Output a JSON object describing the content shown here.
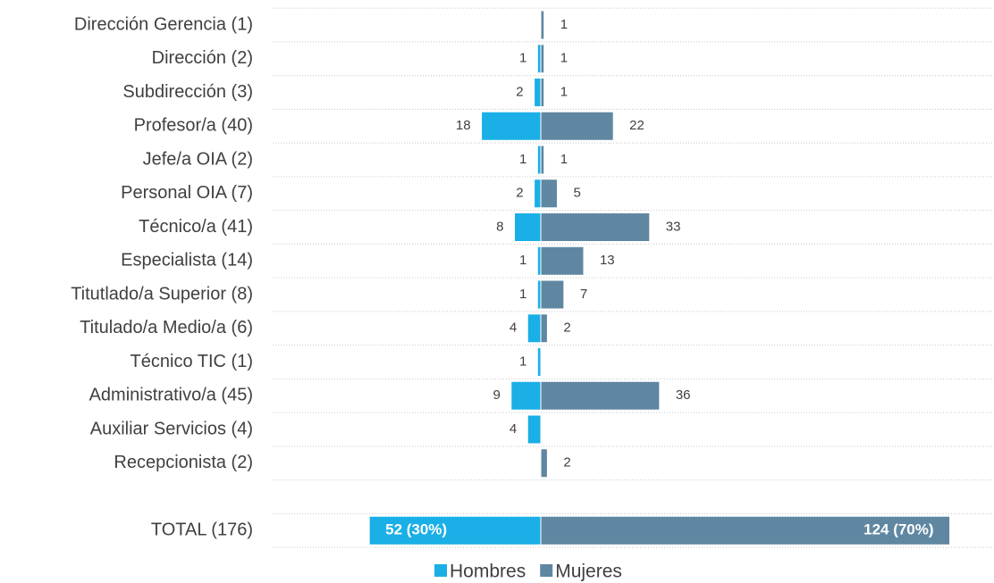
{
  "chart_data": {
    "type": "butterfly-bar",
    "categories": [
      "Dirección Gerencia (1)",
      "Dirección (2)",
      "Subdirección (3)",
      "Profesor/a (40)",
      "Jefe/a OIA (2)",
      "Personal OIA (7)",
      "Técnico/a (41)",
      "Especialista (14)",
      "Titutlado/a Superior (8)",
      "Titulado/a Medio/a (6)",
      "Técnico TIC (1)",
      "Administrativo/a (45)",
      "Auxiliar Servicios (4)",
      "Recepcionista (2)",
      null,
      "TOTAL (176)"
    ],
    "series": [
      {
        "name": "Hombres",
        "color": "#1aafe6",
        "side": "left",
        "values": [
          null,
          1,
          2,
          18,
          1,
          2,
          8,
          1,
          1,
          4,
          1,
          9,
          4,
          null,
          null,
          52
        ],
        "value_labels": [
          null,
          null,
          null,
          null,
          null,
          null,
          null,
          null,
          null,
          null,
          null,
          null,
          null,
          null,
          null,
          "52 (30%)"
        ]
      },
      {
        "name": "Mujeres",
        "color": "#5f87a1",
        "side": "right",
        "values": [
          1,
          1,
          1,
          22,
          1,
          5,
          33,
          13,
          7,
          2,
          null,
          36,
          null,
          2,
          null,
          124
        ],
        "value_labels": [
          null,
          null,
          null,
          null,
          null,
          null,
          null,
          null,
          null,
          null,
          null,
          null,
          null,
          null,
          null,
          "124 (70%)"
        ]
      }
    ],
    "grid": true,
    "legend": "bottom"
  }
}
